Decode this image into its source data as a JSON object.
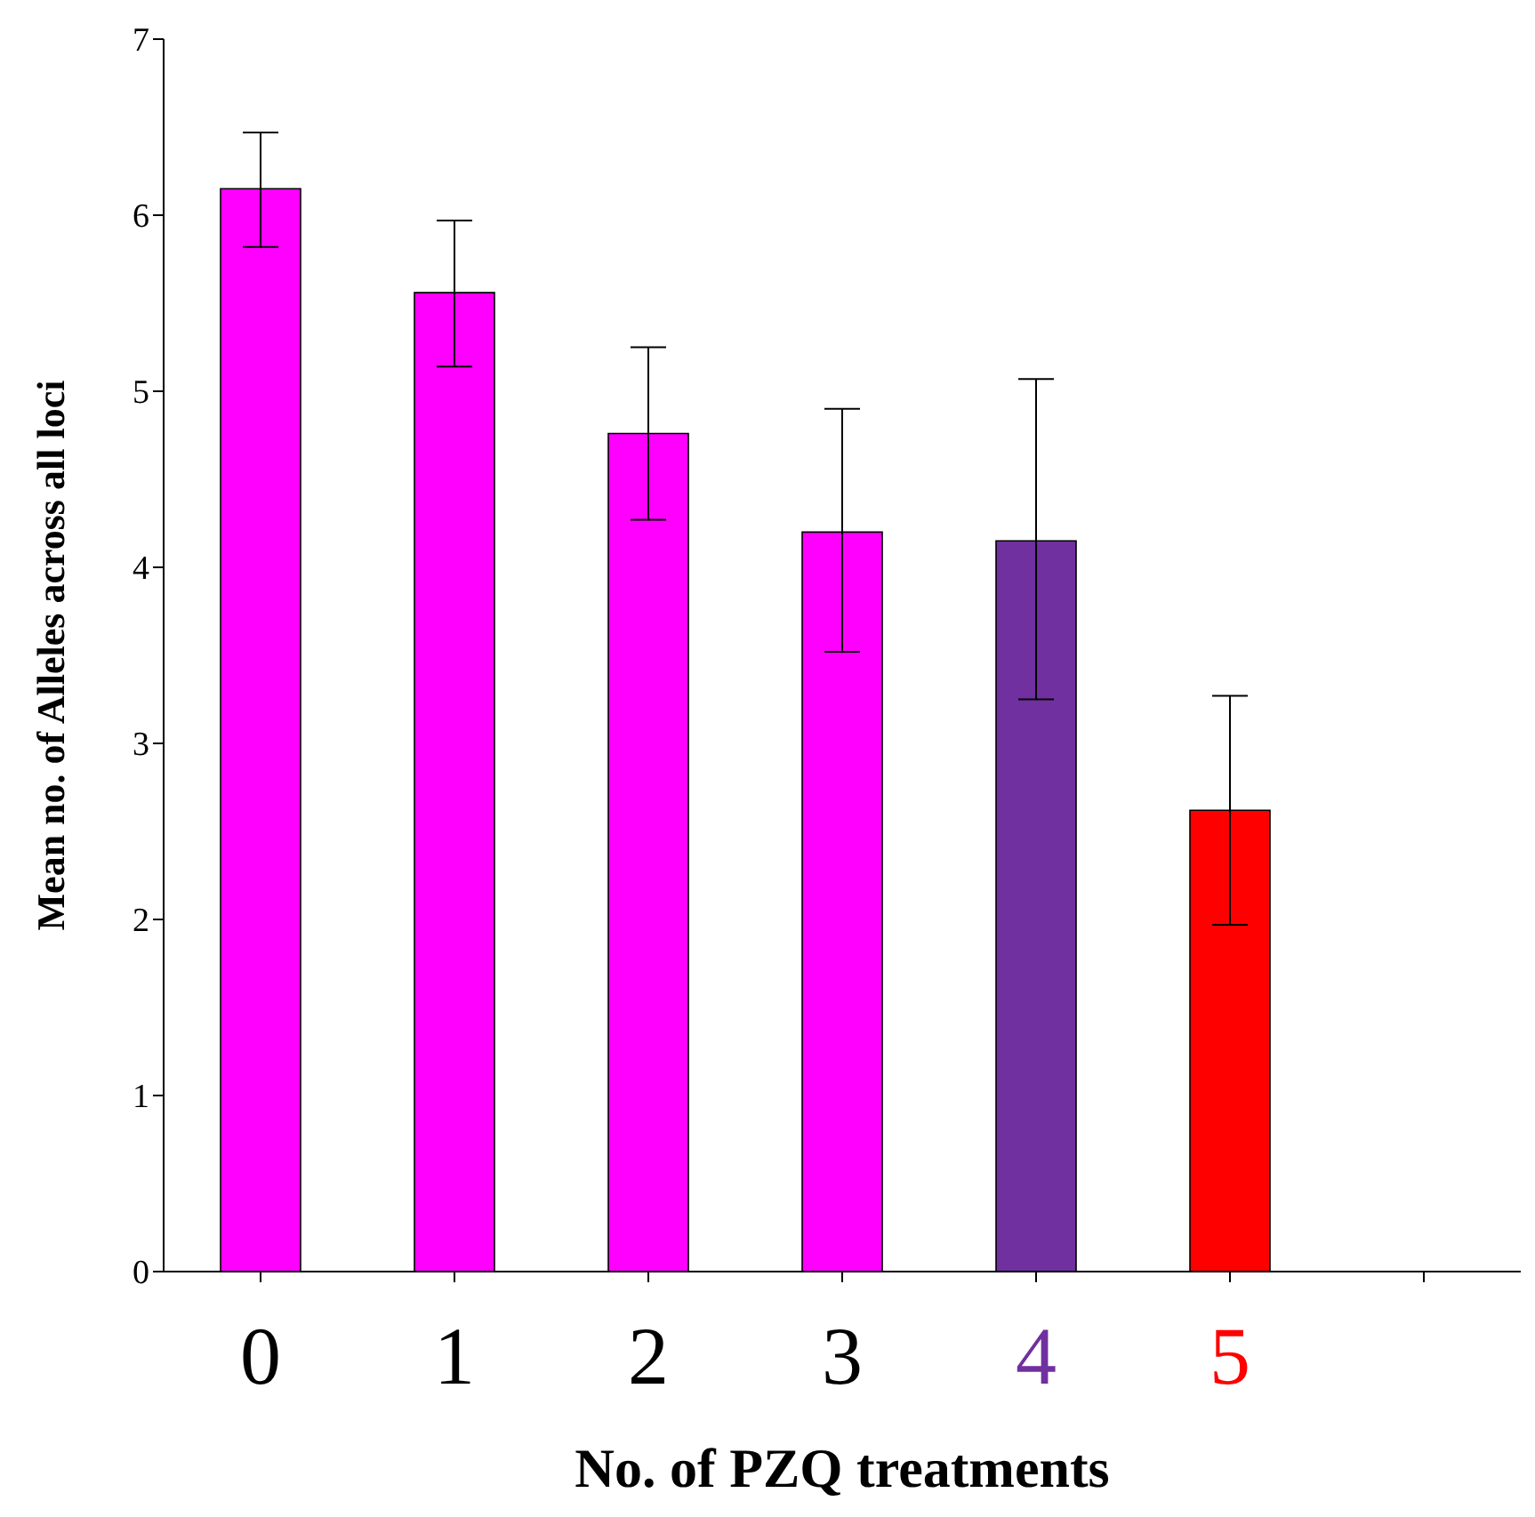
{
  "chart_data": {
    "type": "bar",
    "xlabel": "No. of PZQ treatments",
    "ylabel": "Mean no. of Alleles across all loci",
    "categories": [
      "0",
      "1",
      "2",
      "3",
      "4",
      "5",
      null
    ],
    "values": [
      6.15,
      5.56,
      4.76,
      4.2,
      4.15,
      2.62,
      null
    ],
    "colors": [
      "#ff00ff",
      "#ff00ff",
      "#ff00ff",
      "#ff00ff",
      "#7030a0",
      "#ff0000",
      "#ff00ff"
    ],
    "errors": [
      [
        5.82,
        6.47
      ],
      [
        5.14,
        5.97
      ],
      [
        4.27,
        5.25
      ],
      [
        3.52,
        4.9
      ],
      [
        3.25,
        5.07
      ],
      [
        1.97,
        3.27
      ],
      null
    ],
    "ylim": [
      0,
      7
    ],
    "yticks": [
      0,
      1,
      2,
      3,
      4,
      5,
      6,
      7
    ],
    "grid": false,
    "legend": false
  }
}
